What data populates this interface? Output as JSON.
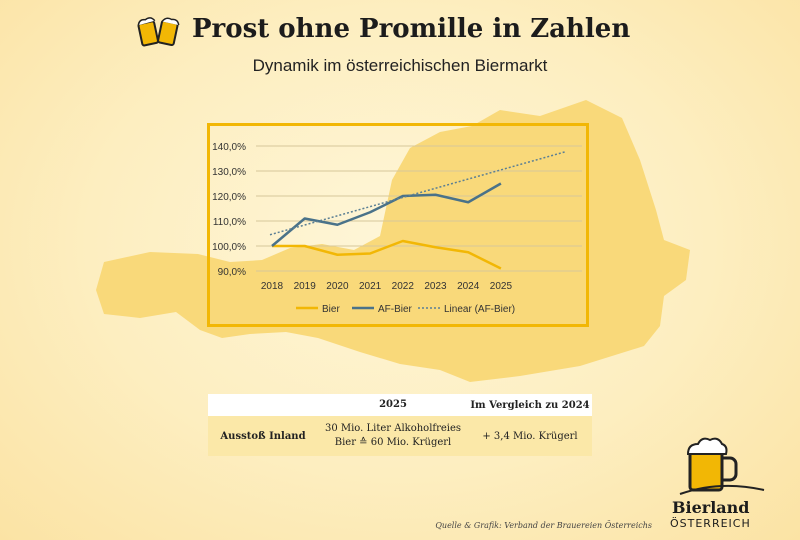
{
  "header": {
    "title": "Prost ohne Promille in Zahlen",
    "subtitle": "Dynamik im österreichischen Biermarkt"
  },
  "colors": {
    "bier": "#f2b705",
    "af_bier": "#4a7289",
    "linear": "#5b7f94",
    "map": "#f9d97a"
  },
  "chart_data": {
    "type": "line",
    "x": [
      "2018",
      "2019",
      "2020",
      "2021",
      "2022",
      "2023",
      "2024",
      "2025"
    ],
    "yticks": [
      "90,0%",
      "100,0%",
      "110,0%",
      "120,0%",
      "130,0%",
      "140,0%"
    ],
    "ylim": [
      90,
      140
    ],
    "grid": true,
    "legend_position": "bottom",
    "series": [
      {
        "name": "Bier",
        "values": [
          100.0,
          100.0,
          96.5,
          97.0,
          102.0,
          99.5,
          97.5,
          91.0
        ]
      },
      {
        "name": "AF-Bier",
        "values": [
          100.0,
          111.0,
          108.5,
          113.5,
          120.0,
          120.5,
          117.5,
          125.0
        ]
      },
      {
        "name": "Linear (AF-Bier)",
        "values": [
          104.5,
          108.2,
          111.9,
          115.6,
          119.3,
          123.0,
          126.7,
          130.4
        ],
        "style": "dotted",
        "extends": true
      }
    ]
  },
  "table": {
    "headers": [
      "",
      "2025",
      "Im Vergleich zu 2024"
    ],
    "row_label": "Ausstoß Inland",
    "value_line1": "30 Mio. Liter Alkoholfreies",
    "value_line2": "Bier ≙ 60 Mio. Krügerl",
    "change": "+ 3,4 Mio. Krügerl"
  },
  "footer": {
    "source": "Quelle & Grafik: Verband der Brauereien Österreichs",
    "brand_name": "Bierland",
    "brand_country": "ÖSTERREICH"
  },
  "icons": {
    "top_logo": "beer-mugs-cheers-icon",
    "brand_logo": "beer-mug-icon"
  }
}
